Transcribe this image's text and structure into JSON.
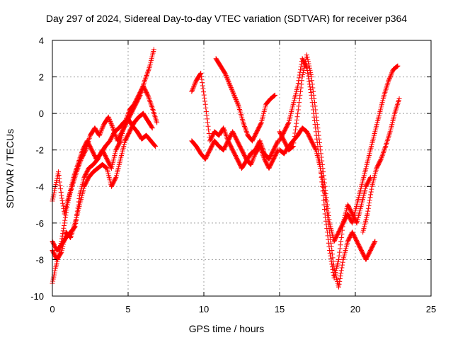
{
  "chart_data": {
    "type": "scatter",
    "title": "Day 297 of 2024, Sidereal Day-to-day VTEC variation (SDTVAR) for receiver p364",
    "xlabel": "GPS time / hours",
    "ylabel": "SDTVAR / TECUs",
    "xlim": [
      0,
      25
    ],
    "ylim": [
      -10,
      4
    ],
    "xticks": [
      "0",
      "5",
      "10",
      "15",
      "20",
      "25"
    ],
    "yticks": [
      "4",
      "2",
      "0",
      "-2",
      "-4",
      "-6",
      "-8",
      "-10"
    ],
    "grid": true,
    "marker": "plus",
    "color": "#ff0000",
    "series": [
      {
        "x": [
          0.0,
          0.2,
          0.4,
          0.6,
          0.8,
          1.0,
          1.2,
          1.4,
          1.6,
          1.8,
          2.0,
          2.3,
          2.6,
          2.9,
          3.2,
          3.5,
          3.8,
          4.1,
          4.4,
          4.7,
          5.0,
          5.3,
          5.6,
          5.9,
          6.2,
          6.5,
          6.8
        ],
        "y": [
          -9.3,
          -8.5,
          -7.8,
          -7.0,
          -6.0,
          -5.0,
          -4.2,
          -3.5,
          -3.0,
          -2.5,
          -2.0,
          -1.5,
          -2.0,
          -2.5,
          -2.2,
          -1.8,
          -1.5,
          -1.0,
          -0.8,
          -0.5,
          -0.3,
          -0.7,
          -1.0,
          -1.4,
          -1.2,
          -1.5,
          -1.8
        ]
      },
      {
        "x": [
          0.0,
          0.2,
          0.4,
          0.6,
          0.8,
          1.0,
          1.3,
          1.6,
          1.9,
          2.2,
          2.5,
          2.8,
          3.1,
          3.4,
          3.7,
          4.0,
          4.3,
          4.6,
          4.9,
          5.2,
          5.5,
          5.8,
          6.1,
          6.4,
          6.7
        ],
        "y": [
          -4.8,
          -4.0,
          -3.2,
          -4.5,
          -5.5,
          -4.8,
          -4.0,
          -3.2,
          -2.5,
          -2.0,
          -1.2,
          -0.8,
          -1.2,
          -0.6,
          -0.2,
          -0.8,
          -1.5,
          -1.0,
          -0.5,
          0.0,
          0.5,
          1.0,
          1.8,
          2.5,
          3.5
        ]
      },
      {
        "x": [
          0.0,
          0.3,
          0.6,
          0.9,
          1.2,
          1.5,
          1.8,
          2.1,
          2.4,
          2.7,
          3.0,
          3.3,
          3.6,
          3.9,
          4.2,
          4.5,
          4.8,
          5.1,
          5.4,
          5.7,
          6.0,
          6.3,
          6.6,
          6.9
        ],
        "y": [
          -7.0,
          -7.5,
          -7.2,
          -6.8,
          -6.5,
          -6.2,
          -4.5,
          -3.5,
          -3.0,
          -2.8,
          -2.5,
          -2.0,
          -2.5,
          -3.0,
          -2.0,
          -1.5,
          -0.5,
          0.2,
          0.5,
          1.0,
          1.5,
          1.0,
          0.3,
          -0.5
        ]
      },
      {
        "x": [
          0.0,
          0.3,
          0.6,
          0.9,
          1.2,
          1.5,
          1.8,
          2.1,
          2.4,
          2.7,
          3.0,
          3.3,
          3.6,
          3.9,
          4.2,
          4.5,
          4.8,
          5.1,
          5.4,
          5.7,
          6.0,
          6.3,
          6.6
        ],
        "y": [
          -7.5,
          -8.0,
          -7.6,
          -6.5,
          -6.8,
          -6.0,
          -5.0,
          -4.0,
          -3.5,
          -3.2,
          -3.0,
          -2.8,
          -3.0,
          -4.0,
          -3.5,
          -2.5,
          -1.5,
          -1.0,
          -0.5,
          -0.2,
          0.0,
          -0.4,
          -0.8
        ]
      },
      {
        "x": [
          9.2,
          9.5,
          9.8,
          10.1,
          10.4,
          10.7,
          11.0,
          11.3,
          11.6,
          11.9,
          12.2,
          12.5,
          12.8,
          13.1,
          13.4,
          13.7,
          14.0,
          14.3,
          14.6,
          14.9
        ],
        "y": [
          1.2,
          1.8,
          2.2,
          0.5,
          -1.5,
          -1.0,
          -1.2,
          -0.8,
          -1.5,
          -2.0,
          -2.5,
          -3.0,
          -2.6,
          -2.2,
          -2.0,
          -1.5,
          -2.2,
          -2.5,
          -2.0,
          -1.5
        ]
      },
      {
        "x": [
          9.2,
          9.5,
          9.8,
          10.1,
          10.4,
          10.7,
          11.0,
          11.3,
          11.6,
          11.9,
          12.2,
          12.5,
          12.8,
          13.1,
          13.4,
          13.7,
          14.0,
          14.3,
          14.6,
          14.9
        ],
        "y": [
          -1.5,
          -1.8,
          -2.2,
          -2.5,
          -2.0,
          -1.5,
          -1.8,
          -2.0,
          -1.5,
          -1.0,
          -1.5,
          -2.0,
          -2.5,
          -2.8,
          -2.2,
          -1.8,
          -2.5,
          -3.0,
          -2.5,
          -2.0
        ]
      },
      {
        "x": [
          10.8,
          11.1,
          11.4,
          11.7,
          12.0,
          12.3,
          12.6,
          12.9,
          13.2,
          13.5,
          13.8,
          14.1,
          14.4,
          14.7
        ],
        "y": [
          3.0,
          2.6,
          2.2,
          1.6,
          1.0,
          0.4,
          -0.5,
          -1.2,
          -1.5,
          -1.0,
          -0.5,
          0.5,
          0.8,
          1.0
        ]
      },
      {
        "x": [
          15.0,
          15.3,
          15.6,
          15.9,
          16.2,
          16.5,
          16.8,
          17.1,
          17.4,
          17.7,
          18.0,
          18.3,
          18.6,
          18.9,
          19.2,
          19.5,
          19.8,
          20.1,
          20.4,
          20.7,
          21.0
        ],
        "y": [
          -1.5,
          -1.0,
          -0.5,
          0.5,
          1.5,
          3.0,
          2.5,
          1.0,
          -1.0,
          -3.0,
          -5.5,
          -7.5,
          -9.0,
          -8.0,
          -6.0,
          -5.0,
          -5.5,
          -6.0,
          -5.0,
          -4.0,
          -3.5
        ]
      },
      {
        "x": [
          15.0,
          15.3,
          15.6,
          15.9,
          16.2,
          16.5,
          16.8,
          17.1,
          17.4,
          17.7,
          18.0,
          18.3,
          18.6,
          18.9,
          19.2,
          19.5,
          19.8,
          20.1,
          20.4,
          20.7,
          21.0,
          21.3
        ],
        "y": [
          -2.0,
          -2.2,
          -1.8,
          -1.5,
          -1.2,
          -0.8,
          -1.0,
          -1.5,
          -2.0,
          -3.0,
          -4.5,
          -6.5,
          -8.5,
          -9.5,
          -8.0,
          -7.0,
          -6.5,
          -7.0,
          -7.5,
          -8.0,
          -7.5,
          -7.0
        ]
      },
      {
        "x": [
          15.0,
          15.3,
          15.6,
          15.9,
          16.2,
          16.5,
          16.8,
          17.1,
          17.4,
          17.7,
          18.0,
          18.3,
          18.6,
          18.9,
          19.2,
          19.5,
          19.8,
          20.1,
          20.4,
          20.7,
          21.0,
          21.3,
          21.6,
          21.9,
          22.2,
          22.5,
          22.8
        ],
        "y": [
          -1.0,
          -1.5,
          -2.0,
          -1.8,
          0.0,
          2.0,
          3.2,
          2.0,
          0.0,
          -2.0,
          -4.0,
          -6.0,
          -7.0,
          -6.5,
          -6.0,
          -5.5,
          -6.0,
          -5.0,
          -4.0,
          -3.0,
          -2.0,
          -1.0,
          0.0,
          1.0,
          1.8,
          2.4,
          2.6
        ]
      },
      {
        "x": [
          20.5,
          20.8,
          21.1,
          21.4,
          21.7,
          22.0,
          22.3,
          22.6,
          22.9
        ],
        "y": [
          -6.5,
          -5.5,
          -4.0,
          -3.0,
          -2.5,
          -1.8,
          -1.0,
          0.0,
          0.8
        ]
      }
    ]
  }
}
